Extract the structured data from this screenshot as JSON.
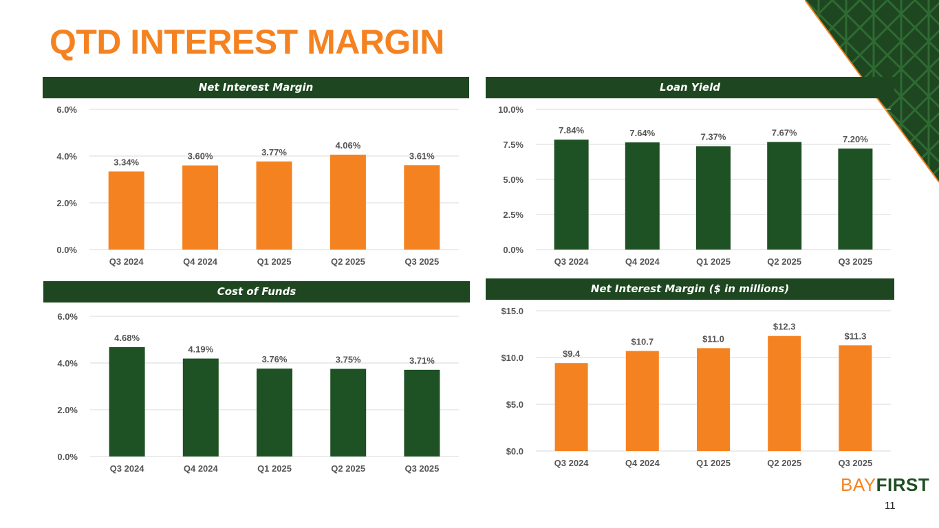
{
  "slide": {
    "title": "QTD INTEREST MARGIN",
    "page_number": "11",
    "logo": {
      "part1": "BAY",
      "part2": "FIRST"
    }
  },
  "colors": {
    "orange": "#f58220",
    "green": "#1e5124",
    "header_bg": "#1e4620",
    "grid": "#d9d9d9",
    "text": "#555555"
  },
  "chart_data": [
    {
      "id": "nim",
      "type": "bar",
      "title": "Net Interest Margin",
      "categories": [
        "Q3 2024",
        "Q4 2024",
        "Q1 2025",
        "Q2 2025",
        "Q3 2025"
      ],
      "values": [
        3.34,
        3.6,
        3.77,
        4.06,
        3.61
      ],
      "data_labels": [
        "3.34%",
        "3.60%",
        "3.77%",
        "4.06%",
        "3.61%"
      ],
      "ylim": [
        0,
        6
      ],
      "yticks": [
        0,
        2,
        4,
        6
      ],
      "ytick_labels": [
        "0.0%",
        "2.0%",
        "4.0%",
        "6.0%"
      ],
      "color": "orange",
      "grid": true
    },
    {
      "id": "loan_yield",
      "type": "bar",
      "title": "Loan Yield",
      "categories": [
        "Q3 2024",
        "Q4 2024",
        "Q1 2025",
        "Q2 2025",
        "Q3 2025"
      ],
      "values": [
        7.84,
        7.64,
        7.37,
        7.67,
        7.2
      ],
      "data_labels": [
        "7.84%",
        "7.64%",
        "7.37%",
        "7.67%",
        "7.20%"
      ],
      "ylim": [
        0,
        10
      ],
      "yticks": [
        0,
        2.5,
        5,
        7.5,
        10
      ],
      "ytick_labels": [
        "0.0%",
        "2.5%",
        "5.0%",
        "7.5%",
        "10.0%"
      ],
      "color": "green",
      "grid": true
    },
    {
      "id": "cost_of_funds",
      "type": "bar",
      "title": "Cost of Funds",
      "categories": [
        "Q3 2024",
        "Q4 2024",
        "Q1 2025",
        "Q2 2025",
        "Q3 2025"
      ],
      "values": [
        4.68,
        4.19,
        3.76,
        3.75,
        3.71
      ],
      "data_labels": [
        "4.68%",
        "4.19%",
        "3.76%",
        "3.75%",
        "3.71%"
      ],
      "ylim": [
        0,
        6
      ],
      "yticks": [
        0,
        2,
        4,
        6
      ],
      "ytick_labels": [
        "0.0%",
        "2.0%",
        "4.0%",
        "6.0%"
      ],
      "color": "green",
      "grid": true
    },
    {
      "id": "nim_dollars",
      "type": "bar",
      "title": "Net Interest Margin ($ in millions)",
      "categories": [
        "Q3 2024",
        "Q4 2024",
        "Q1 2025",
        "Q2 2025",
        "Q3 2025"
      ],
      "values": [
        9.4,
        10.7,
        11.0,
        12.3,
        11.3
      ],
      "data_labels": [
        "$9.4",
        "$10.7",
        "$11.0",
        "$12.3",
        "$11.3"
      ],
      "ylim": [
        0,
        15
      ],
      "yticks": [
        0,
        5,
        10,
        15
      ],
      "ytick_labels": [
        "$0.0",
        "$5.0",
        "$10.0",
        "$15.0"
      ],
      "color": "orange",
      "grid": true
    }
  ]
}
